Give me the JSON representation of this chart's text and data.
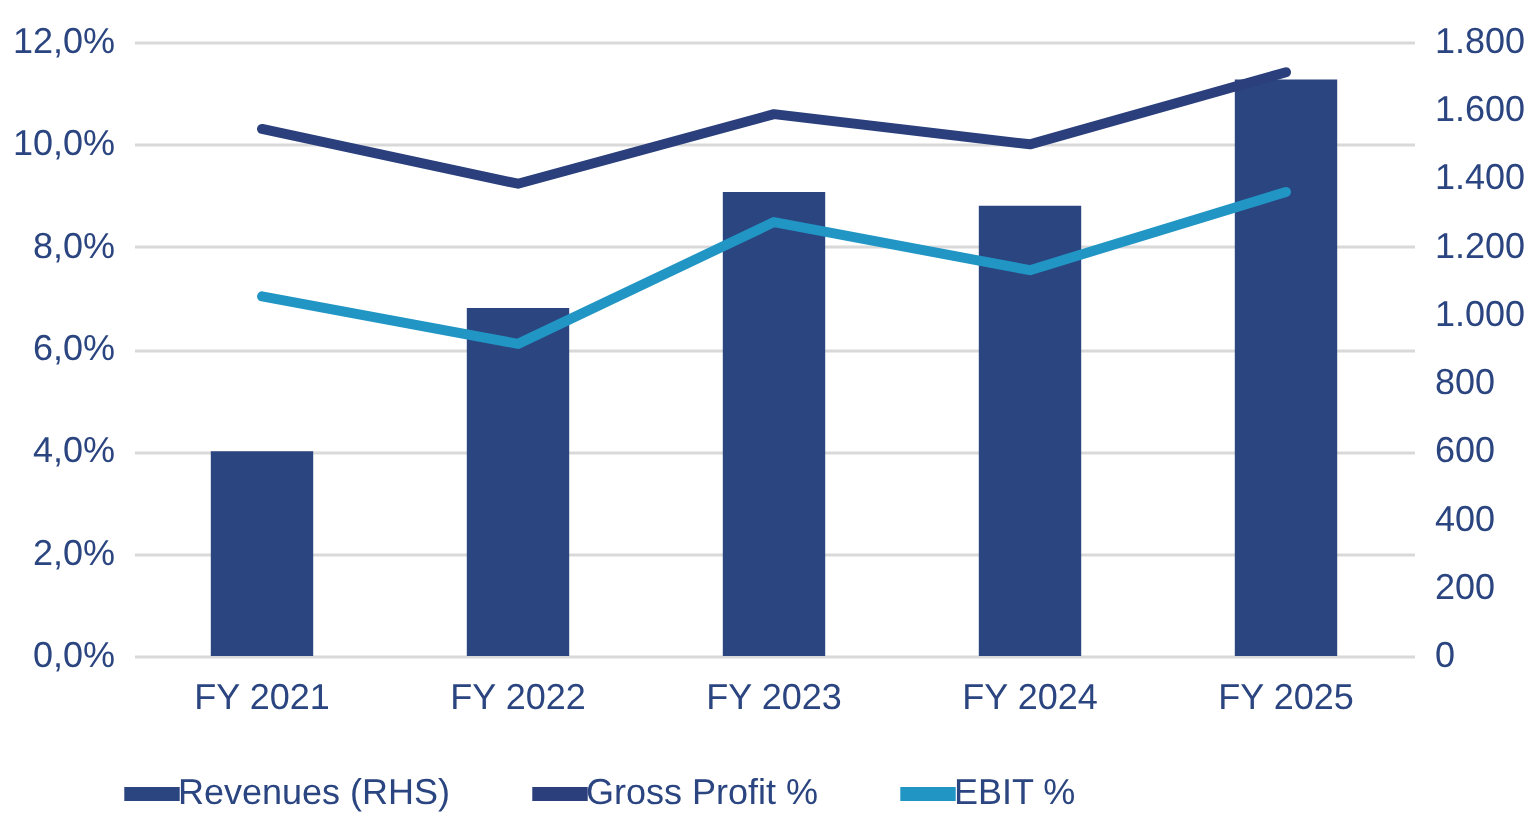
{
  "chart_data": {
    "type": "bar",
    "categories": [
      "FY 2021",
      "FY 2022",
      "FY 2023",
      "FY 2024",
      "FY 2025"
    ],
    "series": [
      {
        "name": "Revenues (RHS)",
        "axis": "y2",
        "color": "#2b4580",
        "values": [
          600,
          1020,
          1360,
          1320,
          1690
        ]
      },
      {
        "name": "Gross Profit %",
        "type": "line",
        "color": "#2a3f7c",
        "values": [
          10.3,
          9.23,
          10.59,
          10.0,
          11.41
        ]
      },
      {
        "name": "EBIT %",
        "type": "line",
        "color": "#2196c4",
        "values": [
          7.03,
          6.1,
          8.48,
          7.54,
          9.07
        ]
      }
    ],
    "ylim": [
      0,
      12
    ],
    "yticks": [
      {
        "value": 0,
        "label": "0,0%"
      },
      {
        "value": 2,
        "label": "2,0%"
      },
      {
        "value": 4,
        "label": "4,0%"
      },
      {
        "value": 6,
        "label": "6,0%"
      },
      {
        "value": 8,
        "label": "8,0%"
      },
      {
        "value": 10,
        "label": "10,0%"
      },
      {
        "value": 12,
        "label": "12,0%"
      }
    ],
    "y2lim": [
      0,
      1800
    ],
    "y2ticks": [
      0,
      200,
      400,
      600,
      800,
      {
        "value": 1000,
        "label": "1.000"
      },
      {
        "value": 1200,
        "label": "1.200"
      },
      {
        "value": 1400,
        "label": "1.400"
      },
      {
        "value": 1600,
        "label": "1.600"
      },
      {
        "value": 1800,
        "label": "1.800"
      }
    ],
    "grid": "y",
    "legend": "bottom",
    "marker": "none",
    "line_style": "solid"
  }
}
